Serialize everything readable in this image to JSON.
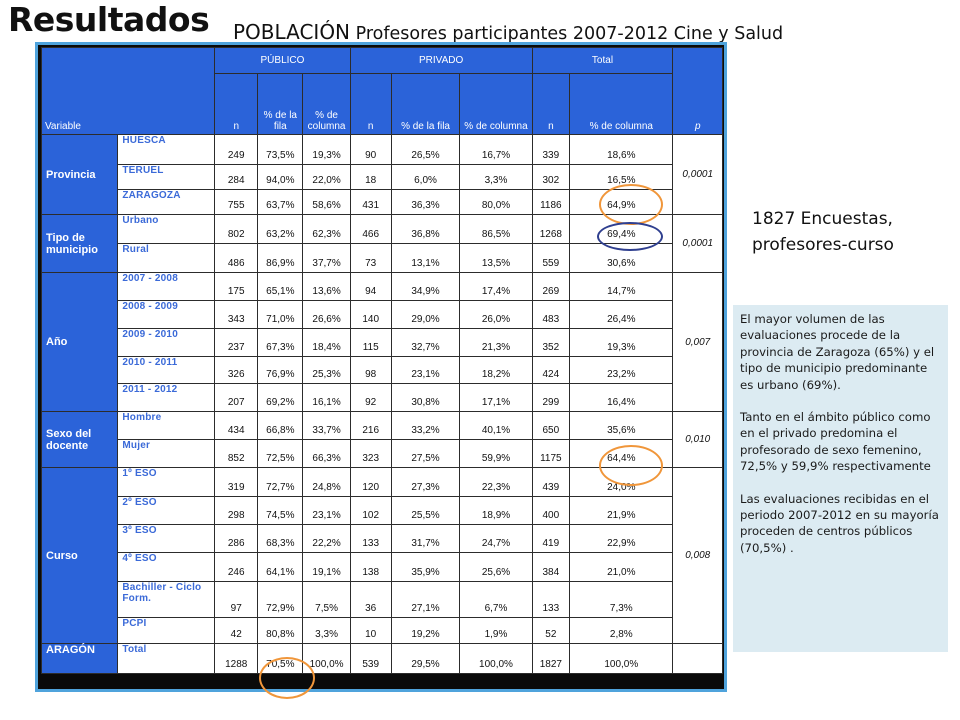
{
  "title": "Resultados",
  "subtitle": {
    "big": "POBLACIÓN",
    "rest": "Profesores participantes 2007-2012 Cine y Salud"
  },
  "encuestas": {
    "line1": "1827 Encuestas,",
    "line2": "profesores-curso"
  },
  "note": [
    "El mayor volumen de las evaluaciones procede de la provincia de Zaragoza (65%) y el tipo de municipio predominante es urbano (69%).",
    "Tanto en el ámbito público como en el privado predomina el profesorado de sexo femenino, 72,5% y 59,9% respectivamente",
    "Las evaluaciones recibidas en el periodo 2007-2012 en su mayoría proceden de centros públicos (70,5%) ."
  ],
  "table": {
    "groups": {
      "publico": "PÚBLICO",
      "privado": "PRIVADO",
      "total": "Total"
    },
    "subheaders": {
      "variable": "Variable",
      "n": "n",
      "pct_fila": "% de la fila",
      "pct_columna": "% de columna",
      "p": "p"
    },
    "sections": [
      {
        "name": "Provincia",
        "p": "0,0001",
        "rows": [
          {
            "label": "HUESCA",
            "pub_n": "249",
            "pub_fila": "73,5%",
            "pub_col": "19,3%",
            "pri_n": "90",
            "pri_fila": "26,5%",
            "pri_col": "16,7%",
            "tot_n": "339",
            "tot_col": "18,6%"
          },
          {
            "label": "TERUEL",
            "pub_n": "284",
            "pub_fila": "94,0%",
            "pub_col": "22,0%",
            "pri_n": "18",
            "pri_fila": "6,0%",
            "pri_col": "3,3%",
            "tot_n": "302",
            "tot_col": "16,5%"
          },
          {
            "label": "ZARAGOZA",
            "pub_n": "755",
            "pub_fila": "63,7%",
            "pub_col": "58,6%",
            "pri_n": "431",
            "pri_fila": "36,3%",
            "pri_col": "80,0%",
            "tot_n": "1186",
            "tot_col": "64,9%"
          }
        ]
      },
      {
        "name": "Tipo de municipio",
        "p": "0,0001",
        "rows": [
          {
            "label": "Urbano",
            "pub_n": "802",
            "pub_fila": "63,2%",
            "pub_col": "62,3%",
            "pri_n": "466",
            "pri_fila": "36,8%",
            "pri_col": "86,5%",
            "tot_n": "1268",
            "tot_col": "69,4%"
          },
          {
            "label": "Rural",
            "pub_n": "486",
            "pub_fila": "86,9%",
            "pub_col": "37,7%",
            "pri_n": "73",
            "pri_fila": "13,1%",
            "pri_col": "13,5%",
            "tot_n": "559",
            "tot_col": "30,6%"
          }
        ]
      },
      {
        "name": "Año",
        "p": "0,007",
        "rows": [
          {
            "label": "2007 - 2008",
            "pub_n": "175",
            "pub_fila": "65,1%",
            "pub_col": "13,6%",
            "pri_n": "94",
            "pri_fila": "34,9%",
            "pri_col": "17,4%",
            "tot_n": "269",
            "tot_col": "14,7%"
          },
          {
            "label": "2008 - 2009",
            "pub_n": "343",
            "pub_fila": "71,0%",
            "pub_col": "26,6%",
            "pri_n": "140",
            "pri_fila": "29,0%",
            "pri_col": "26,0%",
            "tot_n": "483",
            "tot_col": "26,4%"
          },
          {
            "label": "2009 - 2010",
            "pub_n": "237",
            "pub_fila": "67,3%",
            "pub_col": "18,4%",
            "pri_n": "115",
            "pri_fila": "32,7%",
            "pri_col": "21,3%",
            "tot_n": "352",
            "tot_col": "19,3%"
          },
          {
            "label": "2010 - 2011",
            "pub_n": "326",
            "pub_fila": "76,9%",
            "pub_col": "25,3%",
            "pri_n": "98",
            "pri_fila": "23,1%",
            "pri_col": "18,2%",
            "tot_n": "424",
            "tot_col": "23,2%"
          },
          {
            "label": "2011 - 2012",
            "pub_n": "207",
            "pub_fila": "69,2%",
            "pub_col": "16,1%",
            "pri_n": "92",
            "pri_fila": "30,8%",
            "pri_col": "17,1%",
            "tot_n": "299",
            "tot_col": "16,4%"
          }
        ]
      },
      {
        "name": "Sexo del docente",
        "p": "0,010",
        "rows": [
          {
            "label": "Hombre",
            "pub_n": "434",
            "pub_fila": "66,8%",
            "pub_col": "33,7%",
            "pri_n": "216",
            "pri_fila": "33,2%",
            "pri_col": "40,1%",
            "tot_n": "650",
            "tot_col": "35,6%"
          },
          {
            "label": "Mujer",
            "pub_n": "852",
            "pub_fila": "72,5%",
            "pub_col": "66,3%",
            "pri_n": "323",
            "pri_fila": "27,5%",
            "pri_col": "59,9%",
            "tot_n": "1175",
            "tot_col": "64,4%"
          }
        ]
      },
      {
        "name": "Curso",
        "p": "0,008",
        "rows": [
          {
            "label": "1º ESO",
            "pub_n": "319",
            "pub_fila": "72,7%",
            "pub_col": "24,8%",
            "pri_n": "120",
            "pri_fila": "27,3%",
            "pri_col": "22,3%",
            "tot_n": "439",
            "tot_col": "24,0%"
          },
          {
            "label": "2º ESO",
            "pub_n": "298",
            "pub_fila": "74,5%",
            "pub_col": "23,1%",
            "pri_n": "102",
            "pri_fila": "25,5%",
            "pri_col": "18,9%",
            "tot_n": "400",
            "tot_col": "21,9%"
          },
          {
            "label": "3º ESO",
            "pub_n": "286",
            "pub_fila": "68,3%",
            "pub_col": "22,2%",
            "pri_n": "133",
            "pri_fila": "31,7%",
            "pri_col": "24,7%",
            "tot_n": "419",
            "tot_col": "22,9%"
          },
          {
            "label": "4º ESO",
            "pub_n": "246",
            "pub_fila": "64,1%",
            "pub_col": "19,1%",
            "pri_n": "138",
            "pri_fila": "35,9%",
            "pri_col": "25,6%",
            "tot_n": "384",
            "tot_col": "21,0%"
          },
          {
            "label": "Bachiller - Ciclo Form.",
            "pub_n": "97",
            "pub_fila": "72,9%",
            "pub_col": "7,5%",
            "pri_n": "36",
            "pri_fila": "27,1%",
            "pri_col": "6,7%",
            "tot_n": "133",
            "tot_col": "7,3%"
          },
          {
            "label": "PCPI",
            "pub_n": "42",
            "pub_fila": "80,8%",
            "pub_col": "3,3%",
            "pri_n": "10",
            "pri_fila": "19,2%",
            "pri_col": "1,9%",
            "tot_n": "52",
            "tot_col": "2,8%"
          }
        ]
      },
      {
        "name": "ARAGÓN",
        "p": "",
        "rows": [
          {
            "label": "Total",
            "pub_n": "1288",
            "pub_fila": "70,5%",
            "pub_col": "100,0%",
            "pri_n": "539",
            "pri_fila": "29,5%",
            "pri_col": "100,0%",
            "tot_n": "1827",
            "tot_col": "100,0%"
          }
        ]
      }
    ]
  }
}
